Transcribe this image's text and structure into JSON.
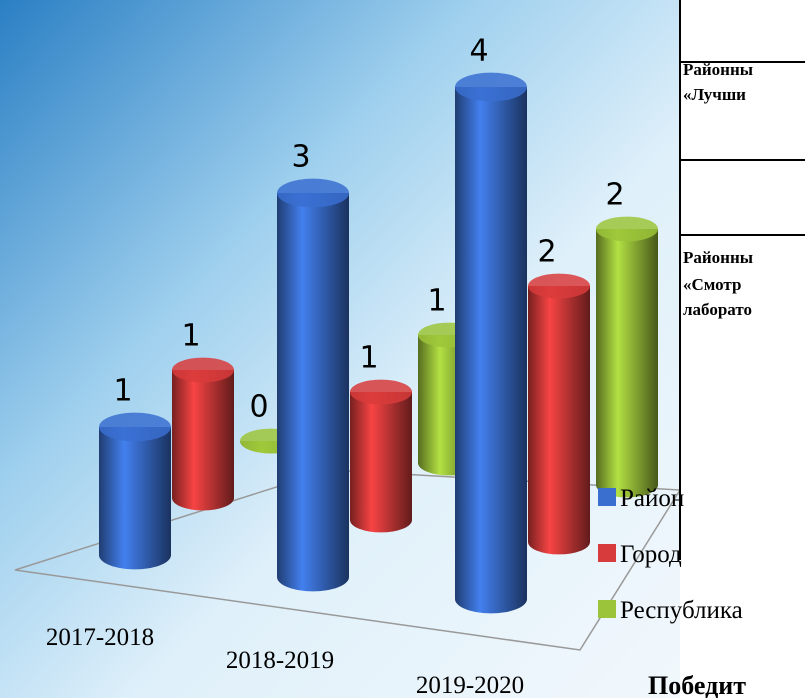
{
  "chart_data": {
    "type": "bar3d",
    "categories": [
      "2017-2018",
      "2018-2019",
      "2019-2020"
    ],
    "series": [
      {
        "name": "Район",
        "color": "#3a6fd0",
        "values": [
          1,
          3,
          4
        ]
      },
      {
        "name": "Город",
        "color": "#d83b3b",
        "values": [
          1,
          1,
          2
        ]
      },
      {
        "name": "Республика",
        "color": "#9cc43a",
        "values": [
          0,
          1,
          2
        ]
      }
    ]
  },
  "table": {
    "rows": [
      [
        "Районны",
        "«Лучши"
      ],
      [
        "Районны",
        "«Смотр",
        "лаборато"
      ]
    ],
    "footer": "Победит"
  }
}
